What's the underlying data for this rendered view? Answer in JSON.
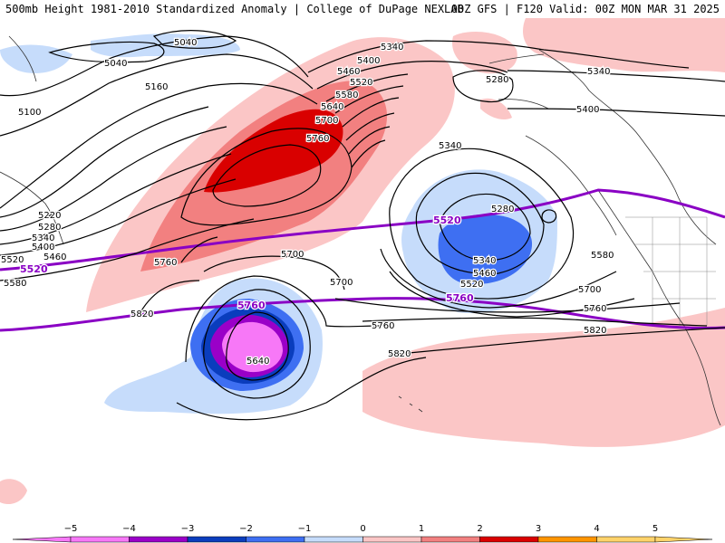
{
  "header": {
    "left": "500mb Height 1981-2010 Standardized Anomaly | College of DuPage NEXLAB",
    "right": "00Z GFS | F120 Valid: 00Z MON MAR 31 2025"
  },
  "colors": {
    "neg5": "#f778f7",
    "neg4": "#9a00c8",
    "neg3": "#0a3dbd",
    "neg2": "#3e6ff2",
    "neg1": "#c6dcfb",
    "pos1": "#fbc6c6",
    "pos2": "#f28080",
    "pos3": "#d90000",
    "pos4": "#ff9500",
    "pos5": "#ffd36a",
    "purple_contour": "#8a00c4"
  },
  "height_labels": {
    "h5040a": "5040",
    "h5040b": "5040",
    "h5100": "5100",
    "h5160": "5160",
    "h5220": "5220",
    "h5280w": "5280",
    "h5340w": "5340",
    "h5400w": "5400",
    "h5460w": "5460",
    "h5520w": "5520",
    "h5580w": "5580",
    "h5340n": "5340",
    "h5400n": "5400",
    "h5460n": "5460",
    "h5520n": "5520",
    "h5580n": "5580",
    "h5640n": "5640",
    "h5700n": "5700",
    "h5760n": "5760",
    "h5760w": "5760",
    "h5700a": "5700",
    "h5700b": "5700",
    "h5820w": "5820",
    "h5640s": "5640",
    "h5760m": "5760",
    "h5820m": "5820",
    "h5340e": "5340",
    "h5400e": "5400",
    "h5280e": "5280",
    "h5340ne": "5340",
    "h5280l": "5280",
    "h5340l": "5340",
    "h5460l": "5460",
    "h5520l": "5520",
    "h5580e": "5580",
    "h5700e": "5700",
    "h5760e": "5760",
    "h5820e": "5820"
  },
  "purple_labels": {
    "p5520w": "5520",
    "p5520e": "5520",
    "p5760w": "5760",
    "p5760e": "5760"
  },
  "legend": {
    "ticks": [
      "−5",
      "−4",
      "−3",
      "−2",
      "−1",
      "0",
      "1",
      "2",
      "3",
      "4",
      "5"
    ]
  }
}
